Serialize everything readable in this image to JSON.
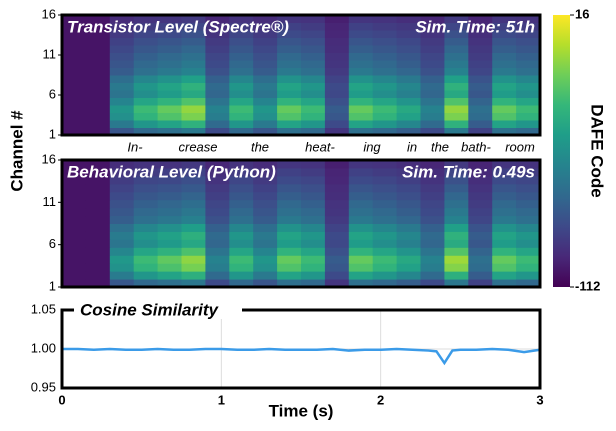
{
  "chart_data": [
    {
      "type": "heatmap",
      "title": "Transistor Level (Spectre®)",
      "subtitle": "Sim. Time: 51h",
      "ylabel": "Channel #",
      "xlim": [
        0,
        3
      ],
      "ylim": [
        1,
        16
      ],
      "yticks": [
        1,
        6,
        11,
        16
      ],
      "zlim": [
        -112,
        16
      ],
      "zticks": [
        16,
        -112
      ],
      "zlabel": "DAFE Code",
      "annotations": [
        "In-",
        "crease",
        "the",
        "heat-",
        "ing",
        "in",
        "the",
        "bath-",
        "room"
      ],
      "values": [
        [
          -105,
          -105,
          -78,
          -69,
          -65,
          -60,
          -83,
          -69,
          -78,
          -65,
          -69,
          -92,
          -65,
          -69,
          -74,
          -83,
          -60,
          -87,
          -65,
          -69
        ],
        [
          -105,
          -105,
          -60,
          -45,
          -38,
          -30,
          -68,
          -45,
          -60,
          -38,
          -45,
          -83,
          -38,
          -45,
          -53,
          -68,
          -30,
          -75,
          -38,
          -45
        ],
        [
          -105,
          -105,
          -48,
          -29,
          -20,
          -10,
          -58,
          -29,
          -48,
          -20,
          -29,
          -77,
          -20,
          -29,
          -39,
          -58,
          -10,
          -67,
          -20,
          -29
        ],
        [
          -105,
          -105,
          -45,
          -25,
          -15,
          -5,
          -55,
          -25,
          -45,
          -15,
          -25,
          -75,
          -15,
          -25,
          -35,
          -55,
          -5,
          -65,
          -15,
          -25
        ],
        [
          -105,
          -105,
          -54,
          -37,
          -29,
          -20,
          -63,
          -37,
          -54,
          -29,
          -37,
          -80,
          -29,
          -37,
          -46,
          -63,
          -20,
          -71,
          -29,
          -37
        ],
        [
          -105,
          -105,
          -63,
          -49,
          -42,
          -35,
          -70,
          -49,
          -63,
          -42,
          -49,
          -84,
          -42,
          -49,
          -56,
          -70,
          -35,
          -77,
          -42,
          -49
        ],
        [
          -105,
          -105,
          -60,
          -45,
          -38,
          -30,
          -68,
          -45,
          -60,
          -38,
          -45,
          -83,
          -38,
          -45,
          -53,
          -68,
          -30,
          -75,
          -38,
          -45
        ],
        [
          -105,
          -105,
          -66,
          -53,
          -47,
          -40,
          -73,
          -53,
          -66,
          -47,
          -53,
          -86,
          -47,
          -53,
          -60,
          -73,
          -40,
          -79,
          -47,
          -53
        ],
        [
          -105,
          -105,
          -75,
          -65,
          -60,
          -55,
          -80,
          -65,
          -75,
          -60,
          -65,
          -90,
          -60,
          -65,
          -70,
          -80,
          -55,
          -85,
          -60,
          -65
        ],
        [
          -105,
          -105,
          -78,
          -69,
          -65,
          -60,
          -83,
          -69,
          -78,
          -65,
          -69,
          -92,
          -65,
          -69,
          -74,
          -83,
          -60,
          -87,
          -65,
          -69
        ],
        [
          -105,
          -105,
          -81,
          -73,
          -69,
          -65,
          -85,
          -73,
          -81,
          -69,
          -73,
          -93,
          -69,
          -73,
          -77,
          -85,
          -65,
          -89,
          -69,
          -73
        ],
        [
          -105,
          -105,
          -84,
          -77,
          -74,
          -70,
          -88,
          -77,
          -84,
          -74,
          -77,
          -95,
          -74,
          -77,
          -81,
          -88,
          -70,
          -91,
          -74,
          -77
        ],
        [
          -105,
          -105,
          -87,
          -81,
          -78,
          -75,
          -90,
          -81,
          -87,
          -78,
          -81,
          -96,
          -78,
          -81,
          -84,
          -90,
          -75,
          -93,
          -78,
          -81
        ],
        [
          -105,
          -105,
          -90,
          -85,
          -83,
          -80,
          -93,
          -85,
          -90,
          -83,
          -85,
          -98,
          -83,
          -85,
          -88,
          -93,
          -80,
          -95,
          -83,
          -85
        ],
        [
          -105,
          -105,
          -93,
          -89,
          -87,
          -85,
          -95,
          -89,
          -93,
          -87,
          -89,
          -99,
          -87,
          -89,
          -91,
          -95,
          -85,
          -97,
          -87,
          -89
        ],
        [
          -105,
          -105,
          -96,
          -93,
          -92,
          -90,
          -98,
          -93,
          -96,
          -92,
          -93,
          -101,
          -92,
          -93,
          -95,
          -98,
          -90,
          -99,
          -92,
          -93
        ]
      ]
    },
    {
      "type": "heatmap",
      "title": "Behavioral Level (Python)",
      "subtitle": "Sim. Time: 0.49s",
      "xlim": [
        0,
        3
      ],
      "ylim": [
        1,
        16
      ],
      "yticks": [
        1,
        6,
        11,
        16
      ],
      "values": [
        [
          -105,
          -105,
          -77,
          -69,
          -65,
          -61,
          -83,
          -69,
          -78,
          -65,
          -69,
          -92,
          -65,
          -69,
          -74,
          -83,
          -61,
          -87,
          -65,
          -69
        ],
        [
          -105,
          -105,
          -59,
          -45,
          -38,
          -31,
          -68,
          -45,
          -60,
          -38,
          -45,
          -83,
          -38,
          -45,
          -53,
          -68,
          -31,
          -75,
          -38,
          -45
        ],
        [
          -105,
          -105,
          -47,
          -29,
          -21,
          -11,
          -58,
          -29,
          -48,
          -20,
          -29,
          -77,
          -20,
          -29,
          -39,
          -58,
          -8,
          -67,
          -20,
          -29
        ],
        [
          -105,
          -105,
          -44,
          -25,
          -16,
          -6,
          -55,
          -25,
          -45,
          -15,
          -25,
          -75,
          -15,
          -25,
          -35,
          -55,
          -3,
          -65,
          -15,
          -25
        ],
        [
          -105,
          -105,
          -53,
          -37,
          -30,
          -21,
          -63,
          -37,
          -54,
          -29,
          -37,
          -80,
          -29,
          -37,
          -46,
          -63,
          -19,
          -71,
          -29,
          -37
        ],
        [
          -105,
          -105,
          -62,
          -49,
          -43,
          -36,
          -70,
          -49,
          -63,
          -42,
          -49,
          -84,
          -42,
          -49,
          -56,
          -70,
          -34,
          -77,
          -42,
          -49
        ],
        [
          -105,
          -105,
          -59,
          -45,
          -39,
          -31,
          -68,
          -45,
          -60,
          -38,
          -45,
          -83,
          -38,
          -45,
          -53,
          -68,
          -30,
          -75,
          -38,
          -45
        ],
        [
          -105,
          -105,
          -65,
          -53,
          -48,
          -41,
          -73,
          -53,
          -66,
          -47,
          -53,
          -86,
          -47,
          -53,
          -60,
          -73,
          -40,
          -79,
          -47,
          -53
        ],
        [
          -105,
          -105,
          -74,
          -65,
          -61,
          -56,
          -80,
          -65,
          -75,
          -60,
          -65,
          -90,
          -60,
          -65,
          -70,
          -80,
          -55,
          -85,
          -60,
          -65
        ],
        [
          -105,
          -105,
          -77,
          -69,
          -66,
          -61,
          -83,
          -69,
          -78,
          -65,
          -69,
          -92,
          -65,
          -69,
          -74,
          -83,
          -60,
          -87,
          -65,
          -69
        ],
        [
          -105,
          -105,
          -80,
          -73,
          -70,
          -66,
          -85,
          -73,
          -81,
          -69,
          -73,
          -93,
          -69,
          -73,
          -77,
          -85,
          -65,
          -89,
          -69,
          -73
        ],
        [
          -105,
          -105,
          -83,
          -77,
          -75,
          -71,
          -88,
          -77,
          -84,
          -74,
          -77,
          -95,
          -74,
          -77,
          -81,
          -88,
          -70,
          -91,
          -74,
          -77
        ],
        [
          -105,
          -105,
          -86,
          -81,
          -79,
          -76,
          -90,
          -81,
          -87,
          -78,
          -81,
          -96,
          -78,
          -81,
          -84,
          -90,
          -75,
          -93,
          -78,
          -81
        ],
        [
          -105,
          -105,
          -89,
          -85,
          -84,
          -81,
          -93,
          -85,
          -90,
          -83,
          -85,
          -98,
          -83,
          -85,
          -88,
          -93,
          -80,
          -95,
          -83,
          -85
        ],
        [
          -105,
          -105,
          -92,
          -89,
          -88,
          -86,
          -95,
          -89,
          -93,
          -87,
          -89,
          -99,
          -87,
          -89,
          -91,
          -95,
          -85,
          -97,
          -87,
          -89
        ],
        [
          -105,
          -105,
          -95,
          -93,
          -93,
          -91,
          -98,
          -93,
          -96,
          -92,
          -93,
          -101,
          -92,
          -93,
          -95,
          -98,
          -90,
          -99,
          -92,
          -93
        ]
      ]
    },
    {
      "type": "line",
      "title": "Cosine Similarity",
      "xlabel": "Time (s)",
      "color": "#3b9be8",
      "grid": true,
      "xlim": [
        0,
        3
      ],
      "xticks": [
        0,
        1,
        2,
        3
      ],
      "ylim": [
        0.95,
        1.05
      ],
      "yticks": [
        0.95,
        {
          "value": 1,
          "label": "1.00"
        },
        1.05
      ],
      "x": [
        0,
        0.1,
        0.2,
        0.3,
        0.4,
        0.5,
        0.6,
        0.7,
        0.8,
        0.9,
        1.0,
        1.1,
        1.2,
        1.3,
        1.4,
        1.5,
        1.6,
        1.7,
        1.8,
        1.9,
        2.0,
        2.1,
        2.2,
        2.3,
        2.35,
        2.4,
        2.45,
        2.5,
        2.6,
        2.7,
        2.8,
        2.9,
        3.0
      ],
      "values": [
        1.0,
        1.0,
        0.999,
        1.0,
        0.999,
        0.999,
        1.0,
        0.999,
        0.999,
        1.0,
        1.0,
        0.999,
        0.999,
        1.0,
        0.999,
        0.999,
        0.999,
        1.0,
        0.998,
        0.999,
        0.999,
        1.0,
        0.999,
        0.998,
        0.997,
        0.982,
        0.998,
        0.999,
        0.999,
        1.0,
        0.999,
        0.996,
        0.999
      ]
    }
  ]
}
